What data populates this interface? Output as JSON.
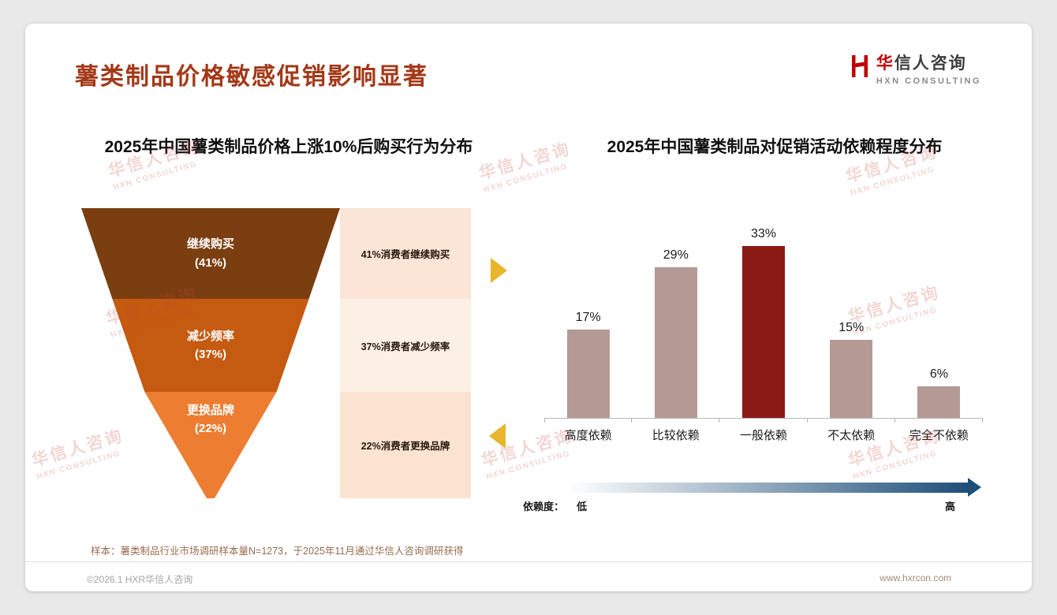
{
  "header": {
    "title": "薯类制品价格敏感促销影响显著",
    "logo": {
      "cn_first": "华",
      "cn_rest": "信人咨询",
      "en": "HXN CONSULTING"
    }
  },
  "watermark": {
    "line1": "华信人咨询",
    "line2": "HXN CONSULTING"
  },
  "chart_data": [
    {
      "type": "funnel",
      "title": "2025年中国薯类制品价格上涨10%后购买行为分布",
      "categories": [
        "继续购买",
        "减少频率",
        "更换品牌"
      ],
      "values": [
        41,
        37,
        22
      ],
      "value_labels": [
        "(41%)",
        "(37%)",
        "(22%)"
      ],
      "annotations": [
        "41%消费者继续购买",
        "37%消费者减少频率",
        "22%消费者更换品牌"
      ],
      "colors": [
        "#7B3E10",
        "#C55A11",
        "#ED7D31"
      ]
    },
    {
      "type": "bar",
      "title": "2025年中国薯类制品对促销活动依赖程度分布",
      "categories": [
        "高度依赖",
        "比较依赖",
        "一般依赖",
        "不太依赖",
        "完全不依赖"
      ],
      "values": [
        17,
        29,
        33,
        15,
        6
      ],
      "value_labels": [
        "17%",
        "29%",
        "33%",
        "15%",
        "6%"
      ],
      "ylim": [
        0,
        35
      ],
      "grid": false,
      "bar_color": "#B39A94",
      "highlight_index": 2,
      "highlight_color": "#8B1A17",
      "legend": {
        "label": "依赖度：",
        "low": "低",
        "high": "高"
      },
      "arrow_gradient": [
        "#FFFFFF",
        "#1F4E79"
      ]
    }
  ],
  "footnote": "样本：薯类制品行业市场调研样本量N=1273，于2025年11月通过华信人咨询调研获得",
  "footer": {
    "copyright": "©2026.1 HXR华信人咨询",
    "website": "www.hxrcon.com"
  },
  "accents": {
    "title_color": "#A33918",
    "gold_arrow": "#E7B62C",
    "logo_red": "#C00000"
  }
}
